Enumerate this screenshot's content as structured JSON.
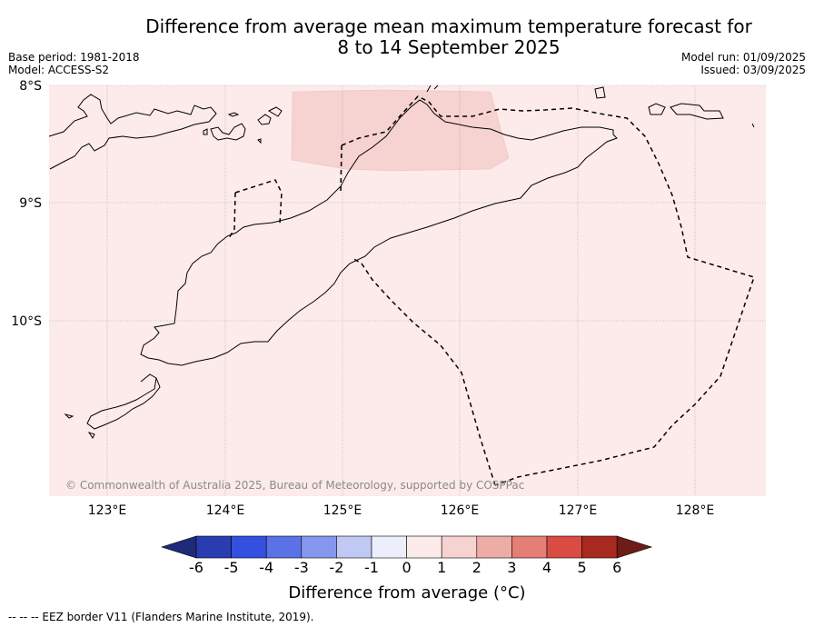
{
  "title": "Difference from average mean maximum temperature forecast for\n8 to 14 September 2025",
  "meta_left": "Base period: 1981-2018\nModel: ACCESS-S2",
  "meta_right": "Model run: 01/09/2025\nIssued: 03/09/2025",
  "map": {
    "lon_range": [
      122.5,
      128.6
    ],
    "lat_range": [
      -8.0,
      -11.5
    ],
    "lat_ticks": [
      {
        "value": -8,
        "label": "8°S"
      },
      {
        "value": -9,
        "label": "9°S"
      },
      {
        "value": -10,
        "label": "10°S"
      }
    ],
    "lon_ticks": [
      {
        "value": 123,
        "label": "123°E"
      },
      {
        "value": 124,
        "label": "124°E"
      },
      {
        "value": 125,
        "label": "125°E"
      },
      {
        "value": 126,
        "label": "126°E"
      },
      {
        "value": 127,
        "label": "127°E"
      },
      {
        "value": 128,
        "label": "128°E"
      }
    ],
    "background_anomaly_range": "0 to 1",
    "patch_anomaly_range": "1 to 2",
    "copyright": "© Commonwealth of Australia 2025, Bureau of Meteorology, supported by COSPPac"
  },
  "colorbar": {
    "label": "Difference from average (°C)",
    "ticks": [
      "-6",
      "-5",
      "-4",
      "-3",
      "-2",
      "-1",
      "0",
      "1",
      "2",
      "3",
      "4",
      "5",
      "6"
    ],
    "colors": [
      "#1f2b7a",
      "#2a3db0",
      "#3350e0",
      "#5b72e6",
      "#8597ec",
      "#c0c8f4",
      "#eceefb",
      "#fcebea",
      "#f6d2d0",
      "#eeaca7",
      "#e57e76",
      "#da4b41",
      "#a8291f",
      "#6e1c16"
    ]
  },
  "footnote": "--  --  -- EEZ border V11 (Flanders Marine Institute, 2019)."
}
